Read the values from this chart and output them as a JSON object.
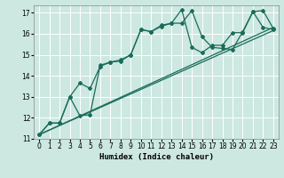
{
  "xlabel": "Humidex (Indice chaleur)",
  "xlim": [
    -0.5,
    23.5
  ],
  "ylim": [
    11,
    17.35
  ],
  "yticks": [
    11,
    12,
    13,
    14,
    15,
    16,
    17
  ],
  "xticks": [
    0,
    1,
    2,
    3,
    4,
    5,
    6,
    7,
    8,
    9,
    10,
    11,
    12,
    13,
    14,
    15,
    16,
    17,
    18,
    19,
    20,
    21,
    22,
    23
  ],
  "bg_color": "#cce8e0",
  "grid_color": "#ffffff",
  "line_color": "#1a6b5a",
  "line1_x": [
    0,
    1,
    2,
    3,
    4,
    5,
    6,
    7,
    8,
    9,
    10,
    11,
    12,
    13,
    14,
    15,
    16,
    17,
    18,
    19,
    20,
    21,
    22,
    23
  ],
  "line1_y": [
    11.2,
    11.75,
    11.75,
    13.0,
    13.65,
    13.4,
    14.45,
    14.65,
    14.75,
    15.0,
    16.2,
    16.1,
    16.4,
    16.5,
    17.15,
    15.35,
    15.1,
    15.45,
    15.45,
    16.05,
    16.05,
    17.05,
    16.3,
    16.2
  ],
  "line2_x": [
    0,
    1,
    2,
    3,
    4,
    5,
    6,
    7,
    8,
    9,
    10,
    11,
    12,
    13,
    14,
    15,
    16,
    17,
    18,
    19,
    20,
    21,
    22,
    23
  ],
  "line2_y": [
    11.2,
    11.75,
    11.75,
    13.0,
    12.1,
    12.15,
    14.5,
    14.65,
    14.7,
    15.0,
    16.2,
    16.1,
    16.35,
    16.5,
    16.5,
    17.1,
    15.85,
    15.35,
    15.3,
    15.25,
    16.1,
    17.05,
    17.1,
    16.25
  ],
  "line3_x": [
    0,
    23
  ],
  "line3_y": [
    11.2,
    16.15
  ],
  "line4_x": [
    0,
    23
  ],
  "line4_y": [
    11.2,
    16.3
  ]
}
